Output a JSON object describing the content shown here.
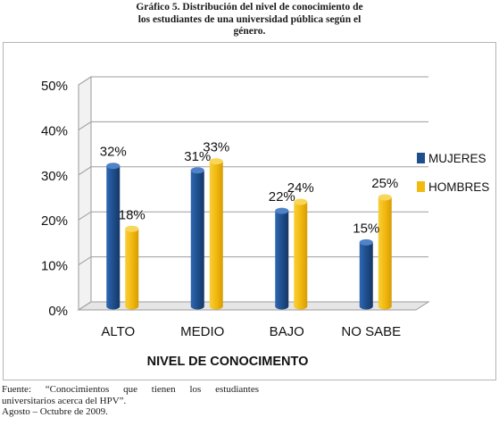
{
  "title_lines": [
    "Gráfico 5. Distribución del nivel de conocimiento de",
    "los estudiantes de una universidad pública según el",
    "género."
  ],
  "source_lines": [
    "Fuente:   “Conocimientos   que   tienen   los   estudiantes",
    "universitarios acerca del HPV”.",
    "Agosto – Octubre de 2009."
  ],
  "chart_data": {
    "type": "bar",
    "title": "",
    "xlabel": "NIVEL DE CONOCIMENTO",
    "ylabel": "",
    "categories": [
      "ALTO",
      "MEDIO",
      "BAJO",
      "NO SABE"
    ],
    "ylim": [
      0,
      50
    ],
    "yticks": [
      "0%",
      "10%",
      "20%",
      "30%",
      "40%",
      "50%"
    ],
    "grid": true,
    "legend_position": "right",
    "series": [
      {
        "name": "MUJERES",
        "color": "#1f4e8c",
        "values": [
          32,
          31,
          22,
          15
        ],
        "labels": [
          "32%",
          "31%",
          "22%",
          "15%"
        ]
      },
      {
        "name": "HOMBRES",
        "color": "#f2b90f",
        "values": [
          18,
          33,
          24,
          25
        ],
        "labels": [
          "18%",
          "33%",
          "24%",
          "25%"
        ]
      }
    ]
  }
}
